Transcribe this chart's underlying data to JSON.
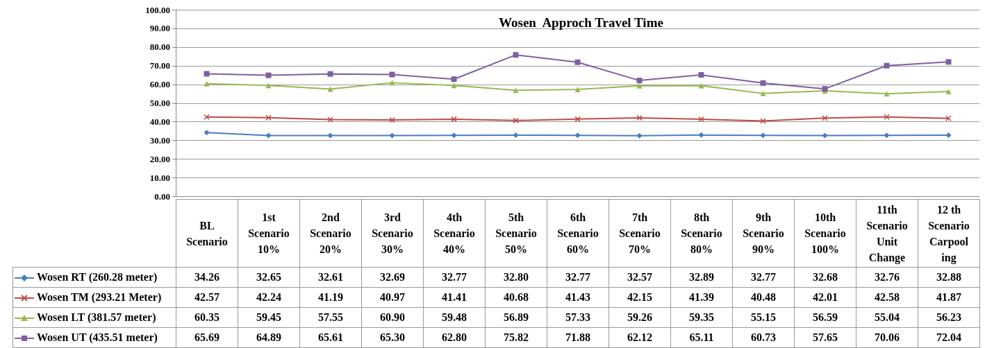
{
  "chart_data": {
    "type": "line",
    "title": "Wosen  Approch Travel Time",
    "categories": [
      "BL Scenario",
      "1st Scenario 10%",
      "2nd Scenario 20%",
      "3rd Scenario 30%",
      "4th Scenario 40%",
      "5th Scenario 50%",
      "6th Scenario 60%",
      "7th Scenario 70%",
      "8th Scenario 80%",
      "9th Scenario 90%",
      "10th Scenario 100%",
      "11th Scenario Unit Change",
      "12 th Scenario Carpool ing"
    ],
    "series": [
      {
        "name": "Wosen RT (260.28 meter)",
        "color": "#4a7ebb",
        "marker": "diamond",
        "values": [
          34.26,
          32.65,
          32.61,
          32.69,
          32.77,
          32.8,
          32.77,
          32.57,
          32.89,
          32.77,
          32.68,
          32.76,
          32.88
        ],
        "value_labels": [
          "34.26",
          "32.65",
          "32.61",
          "32.69",
          "32.77",
          "32.80",
          "32.77",
          "32.57",
          "32.89",
          "32.77",
          "32.68",
          "32.76",
          "32.88"
        ]
      },
      {
        "name": "Wosen TM (293.21 Meter)",
        "color": "#be4b48",
        "marker": "cross",
        "values": [
          42.57,
          42.24,
          41.19,
          40.97,
          41.41,
          40.68,
          41.43,
          42.15,
          41.39,
          40.48,
          42.01,
          42.58,
          41.87
        ],
        "value_labels": [
          "42.57",
          "42.24",
          "41.19",
          "40.97",
          "41.41",
          "40.68",
          "41.43",
          "42.15",
          "41.39",
          "40.48",
          "42.01",
          "42.58",
          "41.87"
        ]
      },
      {
        "name": "Wosen LT (381.57 meter)",
        "color": "#98b954",
        "marker": "triangle",
        "values": [
          60.35,
          59.45,
          57.55,
          60.9,
          59.48,
          56.89,
          57.33,
          59.26,
          59.35,
          55.15,
          56.59,
          55.04,
          56.23
        ],
        "value_labels": [
          "60.35",
          "59.45",
          "57.55",
          "60.90",
          "59.48",
          "56.89",
          "57.33",
          "59.26",
          "59.35",
          "55.15",
          "56.59",
          "55.04",
          "56.23"
        ]
      },
      {
        "name": "Wosen UT (435.51 meter)",
        "color": "#7d60a0",
        "marker": "square",
        "values": [
          65.69,
          64.89,
          65.61,
          65.3,
          62.8,
          75.82,
          71.88,
          62.12,
          65.11,
          60.73,
          57.65,
          70.06,
          72.04
        ],
        "value_labels": [
          "65.69",
          "64.89",
          "65.61",
          "65.30",
          "62.80",
          "75.82",
          "71.88",
          "62.12",
          "65.11",
          "60.73",
          "57.65",
          "70.06",
          "72.04"
        ]
      }
    ],
    "ylim": [
      0,
      100
    ],
    "yticks": [
      {
        "value": 0,
        "label": "0.00"
      },
      {
        "value": 10,
        "label": "10.00"
      },
      {
        "value": 20,
        "label": "20.00"
      },
      {
        "value": 30,
        "label": "30.00"
      },
      {
        "value": 40,
        "label": "40.00"
      },
      {
        "value": 50,
        "label": "50.00"
      },
      {
        "value": 60,
        "label": "60.00"
      },
      {
        "value": 70,
        "label": "70.00"
      },
      {
        "value": 80,
        "label": "80.00"
      },
      {
        "value": 90,
        "label": "90.00"
      },
      {
        "value": 100,
        "label": "100.00"
      }
    ],
    "grid": "y",
    "tick_labels": "y",
    "legend": "bottom left",
    "line_style": "solid"
  }
}
